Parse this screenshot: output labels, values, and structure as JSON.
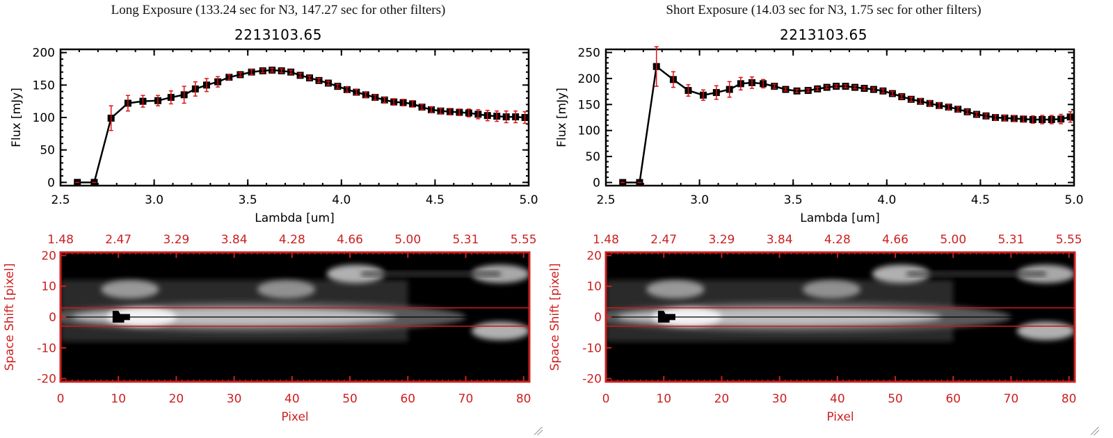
{
  "panels": [
    {
      "id": "long",
      "title": "Long Exposure (133.24 sec for N3, 147.27 sec for other filters)",
      "object_id": "2213103.65",
      "chart_data": [
        {
          "type": "line",
          "title": "2213103.65",
          "xlabel": "Lambda [um]",
          "ylabel": "Flux [mJy]",
          "xlim": [
            2.5,
            5.0
          ],
          "ylim": [
            -5,
            205
          ],
          "xticks": [
            2.5,
            3.0,
            3.5,
            4.0,
            4.5,
            5.0
          ],
          "xtick_labels": [
            "2.5",
            "3.0",
            "3.5",
            "4.0",
            "4.5",
            "5.0"
          ],
          "yticks": [
            0,
            50,
            100,
            150,
            200
          ],
          "ytick_labels": [
            "0",
            "50",
            "100",
            "150",
            "200"
          ],
          "grid": false,
          "marker": "square",
          "error_color": "#e01010",
          "x": [
            2.59,
            2.68,
            2.77,
            2.86,
            2.94,
            3.02,
            3.09,
            3.16,
            3.22,
            3.28,
            3.34,
            3.4,
            3.46,
            3.52,
            3.58,
            3.63,
            3.68,
            3.73,
            3.78,
            3.83,
            3.88,
            3.93,
            3.98,
            4.03,
            4.08,
            4.13,
            4.18,
            4.23,
            4.28,
            4.33,
            4.38,
            4.43,
            4.48,
            4.53,
            4.58,
            4.63,
            4.68,
            4.73,
            4.78,
            4.83,
            4.88,
            4.93,
            4.98
          ],
          "y": [
            0,
            0,
            99,
            122,
            125,
            126,
            131,
            135,
            144,
            150,
            155,
            162,
            166,
            170,
            172,
            173,
            172,
            170,
            165,
            161,
            157,
            153,
            148,
            143,
            139,
            135,
            131,
            127,
            124,
            123,
            121,
            116,
            112,
            110,
            109,
            108,
            107,
            105,
            103,
            102,
            101,
            101,
            100
          ],
          "yerr": [
            0,
            0,
            19,
            12,
            9,
            8,
            10,
            13,
            11,
            10,
            8,
            4,
            3,
            4,
            3,
            3,
            3,
            3,
            3,
            3,
            3,
            3,
            3,
            4,
            4,
            4,
            4,
            4,
            5,
            5,
            5,
            4,
            4,
            4,
            5,
            5,
            6,
            7,
            8,
            8,
            9,
            9,
            9
          ]
        },
        {
          "type": "heatmap",
          "xlabel": "Pixel",
          "ylabel": "Space Shift [pixel]",
          "xlim": [
            0,
            81
          ],
          "ylim": [
            -21,
            21
          ],
          "xticks": [
            0,
            10,
            20,
            30,
            40,
            50,
            60,
            70,
            80
          ],
          "xtick_labels": [
            "0",
            "10",
            "20",
            "30",
            "40",
            "50",
            "60",
            "70",
            "80"
          ],
          "yticks": [
            -20,
            -10,
            0,
            10,
            20
          ],
          "ytick_labels": [
            "-20",
            "-10",
            "0",
            "10",
            "20"
          ],
          "top_axis_labels": [
            "1.48",
            "2.47",
            "3.29",
            "3.84",
            "4.28",
            "4.66",
            "5.00",
            "5.31",
            "5.55"
          ],
          "aperture_lines": [
            3,
            -3
          ],
          "center_line": 0,
          "axis_color": "#cc2020",
          "sources": [
            {
              "x": 10,
              "y": 0,
              "intensity": 1.0,
              "kind": "trace"
            },
            {
              "x": 12,
              "y": 9,
              "intensity": 0.45
            },
            {
              "x": 39,
              "y": 9,
              "intensity": 0.4
            },
            {
              "x": 51,
              "y": 14,
              "intensity": 0.6
            },
            {
              "x": 76,
              "y": 14,
              "intensity": 0.55
            },
            {
              "x": 76,
              "y": -4.5,
              "intensity": 0.6
            }
          ]
        }
      ]
    },
    {
      "id": "short",
      "title": "Short Exposure (14.03 sec for N3, 1.75 sec for other filters)",
      "object_id": "2213103.65",
      "chart_data": [
        {
          "type": "line",
          "title": "2213103.65",
          "xlabel": "Lambda [um]",
          "ylabel": "Flux [mJy]",
          "xlim": [
            2.5,
            5.0
          ],
          "ylim": [
            -6,
            256
          ],
          "xticks": [
            2.5,
            3.0,
            3.5,
            4.0,
            4.5,
            5.0
          ],
          "xtick_labels": [
            "2.5",
            "3.0",
            "3.5",
            "4.0",
            "4.5",
            "5.0"
          ],
          "yticks": [
            0,
            50,
            100,
            150,
            200,
            250
          ],
          "ytick_labels": [
            "0",
            "50",
            "100",
            "150",
            "200",
            "250"
          ],
          "grid": false,
          "marker": "square",
          "error_color": "#e01010",
          "x": [
            2.59,
            2.68,
            2.77,
            2.86,
            2.94,
            3.02,
            3.09,
            3.16,
            3.22,
            3.28,
            3.34,
            3.4,
            3.46,
            3.52,
            3.58,
            3.63,
            3.68,
            3.73,
            3.78,
            3.83,
            3.88,
            3.93,
            3.98,
            4.03,
            4.08,
            4.13,
            4.18,
            4.23,
            4.28,
            4.33,
            4.38,
            4.43,
            4.48,
            4.53,
            4.58,
            4.63,
            4.68,
            4.73,
            4.78,
            4.83,
            4.88,
            4.93,
            4.98
          ],
          "y": [
            0,
            0,
            223,
            198,
            177,
            168,
            173,
            179,
            190,
            192,
            190,
            185,
            179,
            176,
            177,
            180,
            183,
            185,
            185,
            183,
            181,
            179,
            176,
            171,
            165,
            160,
            156,
            152,
            148,
            145,
            141,
            136,
            131,
            128,
            125,
            124,
            123,
            122,
            121,
            121,
            121,
            122,
            126
          ],
          "yerr": [
            0,
            0,
            38,
            15,
            11,
            10,
            13,
            15,
            12,
            11,
            8,
            4,
            3,
            3,
            3,
            3,
            3,
            3,
            3,
            3,
            3,
            3,
            4,
            4,
            4,
            4,
            5,
            5,
            5,
            5,
            5,
            4,
            4,
            4,
            5,
            5,
            6,
            6,
            7,
            8,
            8,
            9,
            10
          ]
        },
        {
          "type": "heatmap",
          "xlabel": "Pixel",
          "ylabel": "Space Shift [pixel]",
          "xlim": [
            0,
            81
          ],
          "ylim": [
            -21,
            21
          ],
          "xticks": [
            0,
            10,
            20,
            30,
            40,
            50,
            60,
            70,
            80
          ],
          "xtick_labels": [
            "0",
            "10",
            "20",
            "30",
            "40",
            "50",
            "60",
            "70",
            "80"
          ],
          "yticks": [
            -20,
            -10,
            0,
            10,
            20
          ],
          "ytick_labels": [
            "-20",
            "-10",
            "0",
            "10",
            "20"
          ],
          "top_axis_labels": [
            "1.48",
            "2.47",
            "3.29",
            "3.84",
            "4.28",
            "4.66",
            "5.00",
            "5.31",
            "5.55"
          ],
          "aperture_lines": [
            3,
            -3
          ],
          "center_line": 0,
          "axis_color": "#cc2020",
          "sources": [
            {
              "x": 10,
              "y": 0,
              "intensity": 1.0,
              "kind": "trace"
            },
            {
              "x": 12,
              "y": 9,
              "intensity": 0.45
            },
            {
              "x": 39,
              "y": 9,
              "intensity": 0.4
            },
            {
              "x": 51,
              "y": 14,
              "intensity": 0.6
            },
            {
              "x": 76,
              "y": 14,
              "intensity": 0.55
            },
            {
              "x": 76,
              "y": -4.5,
              "intensity": 0.6
            }
          ]
        }
      ]
    }
  ]
}
